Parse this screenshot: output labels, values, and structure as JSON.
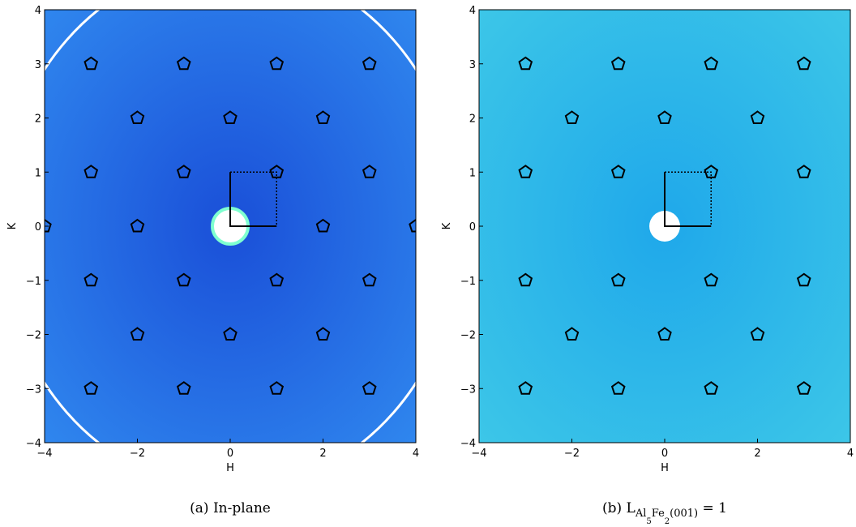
{
  "chart_data": [
    {
      "type": "scatter",
      "caption": "(a) In-plane",
      "xlabel": "H",
      "ylabel": "K",
      "xlim": [
        -4,
        4
      ],
      "ylim": [
        -4,
        4
      ],
      "xticks": [
        {
          "value": -4,
          "label": "−4"
        },
        {
          "value": -2,
          "label": "−2"
        },
        0,
        2,
        4
      ],
      "yticks": [
        {
          "value": -4,
          "label": "−4"
        },
        {
          "value": -3,
          "label": "−3"
        },
        {
          "value": -2,
          "label": "−2"
        },
        {
          "value": -1,
          "label": "−1"
        },
        0,
        1,
        2,
        3,
        4
      ],
      "background": [
        "#2f86ee",
        "#1a4fd8"
      ],
      "series": [
        {
          "color": "#000000",
          "x": [
            -1,
            1,
            -3,
            3,
            -3,
            3,
            -1,
            1,
            -2,
            0,
            2,
            -1,
            1,
            -2,
            2,
            -4,
            4,
            -1,
            1,
            -2,
            0,
            2,
            -3,
            3,
            -3,
            3
          ],
          "values": [
            3,
            3,
            1,
            1,
            -1,
            -1,
            -3,
            -3,
            2,
            2,
            2,
            1,
            1,
            0,
            0,
            0,
            0,
            -1,
            -1,
            -2,
            -2,
            -2,
            3,
            3,
            -3,
            -3
          ]
        }
      ]
    },
    {
      "type": "scatter",
      "caption": {
        "prefix": "(b) L",
        "sub": [
          "Al",
          "5",
          "Fe",
          "2",
          "(001)"
        ],
        "suffix": " = 1"
      },
      "xlabel": "H",
      "ylabel": "K",
      "xlim": [
        -4,
        4
      ],
      "ylim": [
        -4,
        4
      ],
      "xticks": [
        {
          "value": -4,
          "label": "−4"
        },
        {
          "value": -2,
          "label": "−2"
        },
        0,
        2,
        4
      ],
      "yticks": [
        {
          "value": -4,
          "label": "−4"
        },
        {
          "value": -3,
          "label": "−3"
        },
        {
          "value": -2,
          "label": "−2"
        },
        {
          "value": -1,
          "label": "−1"
        },
        0,
        1,
        2,
        3,
        4
      ],
      "background": [
        "#3cc6e8",
        "#1fa8ea"
      ],
      "series": [
        {
          "color": "#000000",
          "x": [
            -3,
            3,
            -3,
            3,
            -2,
            2,
            -2,
            2,
            -1,
            1,
            -1,
            1,
            0,
            0,
            -3,
            3,
            -3,
            3,
            -1,
            1,
            -1,
            1
          ],
          "values": [
            1,
            1,
            -1,
            -1,
            2,
            2,
            -2,
            -2,
            3,
            3,
            -3,
            -3,
            2,
            -2,
            3,
            3,
            -3,
            -3,
            1,
            1,
            -1,
            -1
          ]
        }
      ]
    }
  ]
}
